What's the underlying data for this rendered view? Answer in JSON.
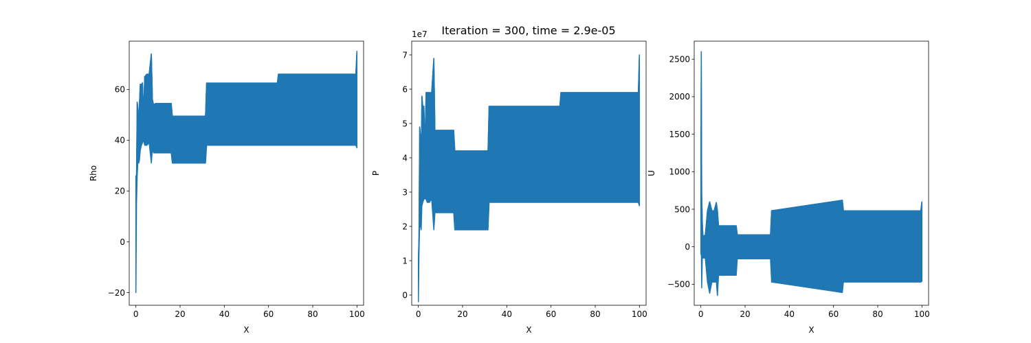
{
  "figure": {
    "suptitle": "Iteration = 300, time = 2.9e-05"
  },
  "colors": {
    "series": "#1f77b4",
    "axes": "#000000",
    "background": "#ffffff"
  },
  "chart_data": [
    {
      "type": "area",
      "ylabel": "Rho",
      "xlabel": "X",
      "offset_label": "",
      "xlim": [
        -3,
        103
      ],
      "ylim": [
        -25,
        79
      ],
      "xticks": [
        0,
        20,
        40,
        60,
        80,
        100
      ],
      "xtick_labels": [
        "0",
        "20",
        "40",
        "60",
        "80",
        "100"
      ],
      "yticks": [
        -20,
        0,
        20,
        40,
        60
      ],
      "ytick_labels": [
        "−20",
        "0",
        "20",
        "40",
        "60"
      ],
      "grid": false,
      "envelope": {
        "x": [
          0,
          0.3,
          0.6,
          1,
          1.3,
          1.6,
          2,
          2.5,
          3,
          3.5,
          4,
          5,
          6,
          7,
          7.5,
          8,
          9,
          12,
          16,
          16.5,
          31.5,
          32,
          64,
          64.5,
          99.5,
          100
        ],
        "upper": [
          26,
          25,
          55,
          52,
          38,
          54,
          62,
          62,
          62.5,
          50,
          65,
          66,
          66,
          74,
          56,
          54,
          54.5,
          54.5,
          54.5,
          49.5,
          49.5,
          62.5,
          62.5,
          66,
          66,
          75
        ],
        "lower": [
          -20,
          15,
          26,
          33,
          31,
          32,
          36,
          38,
          39,
          40,
          38,
          38,
          39,
          31,
          37,
          35,
          35,
          35,
          35,
          31,
          31,
          38,
          38,
          38,
          38,
          37
        ]
      }
    },
    {
      "type": "area",
      "ylabel": "P",
      "xlabel": "X",
      "offset_label": "1e7",
      "xlim": [
        -3,
        103
      ],
      "ylim": [
        -0.3,
        7.4
      ],
      "xticks": [
        0,
        20,
        40,
        60,
        80,
        100
      ],
      "xtick_labels": [
        "0",
        "20",
        "40",
        "60",
        "80",
        "100"
      ],
      "yticks": [
        0,
        1,
        2,
        3,
        4,
        5,
        6,
        7
      ],
      "ytick_labels": [
        "0",
        "1",
        "2",
        "3",
        "4",
        "5",
        "6",
        "7"
      ],
      "grid": false,
      "envelope": {
        "x": [
          0,
          0.3,
          0.6,
          1,
          1.3,
          1.6,
          2,
          2.5,
          3,
          3.5,
          4,
          5,
          6,
          7,
          7.5,
          8,
          9,
          12,
          16,
          16.5,
          31.5,
          32,
          64,
          64.5,
          99.5,
          100
        ],
        "upper": [
          1.0,
          1.7,
          4.9,
          4.6,
          3.5,
          5.8,
          5.5,
          5.5,
          4.3,
          5.9,
          5.9,
          5.9,
          5.9,
          6.9,
          4.8,
          4.8,
          4.8,
          4.8,
          4.8,
          4.2,
          4.2,
          5.5,
          5.5,
          5.9,
          5.9,
          7.0
        ],
        "lower": [
          -0.2,
          1.2,
          2.1,
          2.0,
          1.9,
          2.6,
          2.7,
          2.8,
          2.8,
          2.8,
          2.7,
          2.7,
          2.8,
          1.9,
          2.4,
          2.4,
          2.4,
          2.4,
          2.4,
          1.9,
          1.9,
          2.7,
          2.7,
          2.7,
          2.7,
          2.6
        ]
      }
    },
    {
      "type": "area",
      "ylabel": "U",
      "xlabel": "X",
      "offset_label": "",
      "xlim": [
        -3,
        103
      ],
      "ylim": [
        -780,
        2740
      ],
      "xticks": [
        0,
        20,
        40,
        60,
        80,
        100
      ],
      "xtick_labels": [
        "0",
        "20",
        "40",
        "60",
        "80",
        "100"
      ],
      "yticks": [
        -500,
        0,
        500,
        1000,
        1500,
        2000,
        2500
      ],
      "ytick_labels": [
        "−500",
        "0",
        "500",
        "1000",
        "1500",
        "2000",
        "2500"
      ],
      "grid": false,
      "envelope": {
        "x": [
          0,
          0.2,
          0.4,
          0.7,
          1,
          1.5,
          2,
          3,
          4,
          5,
          6,
          7,
          7.5,
          8,
          9,
          12,
          16,
          16.5,
          31.5,
          32,
          64,
          64.5,
          99.5,
          100
        ],
        "upper": [
          800,
          2600,
          700,
          300,
          100,
          150,
          150,
          480,
          600,
          480,
          480,
          590,
          480,
          280,
          280,
          280,
          280,
          160,
          160,
          480,
          620,
          480,
          480,
          600
        ],
        "lower": [
          -100,
          0,
          -550,
          -100,
          -150,
          -150,
          -150,
          -470,
          -620,
          -470,
          -470,
          -470,
          -650,
          -380,
          -380,
          -380,
          -380,
          -160,
          -160,
          -470,
          -610,
          -470,
          -470,
          -460
        ]
      }
    }
  ]
}
